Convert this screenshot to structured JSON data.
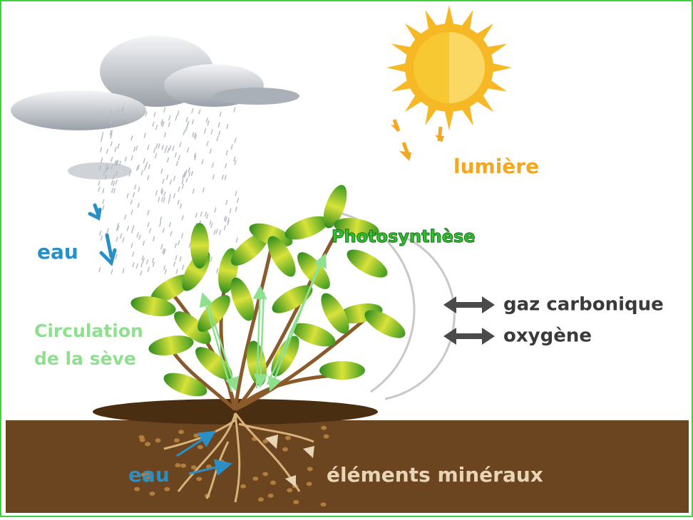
{
  "labels": {
    "light": "lumière",
    "rain_water": "eau",
    "photosynthesis": "Photosynthèse",
    "sap_circulation": [
      "Circulation",
      "de la sève"
    ],
    "carbon_dioxide": "gaz carbonique",
    "oxygen": "oxygène",
    "soil_water": "eau",
    "minerals": "éléments minéraux"
  }
}
